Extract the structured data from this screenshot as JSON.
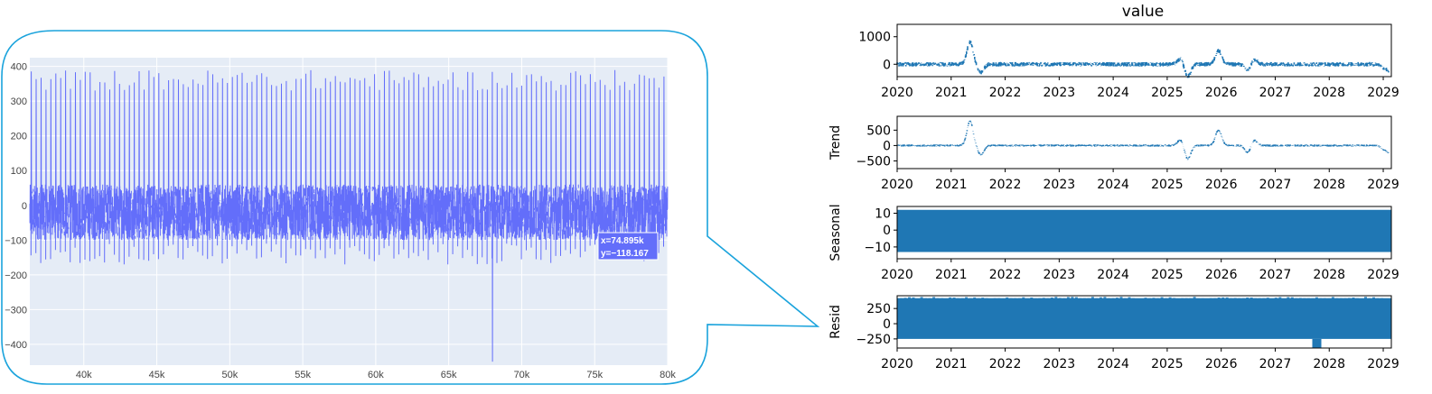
{
  "colors": {
    "plotly_line": "#636efa",
    "plotly_bg": "#e5ecf6",
    "callout_border": "#1aa3dc",
    "mpl_line": "#1f77b4"
  },
  "chart_data": [
    {
      "type": "line",
      "xlim": [
        36300,
        80000
      ],
      "ylim": [
        -460,
        425
      ],
      "x_ticks": [
        40000,
        45000,
        50000,
        55000,
        60000,
        65000,
        70000,
        75000,
        80000
      ],
      "x_tick_labels": [
        "40k",
        "45k",
        "50k",
        "55k",
        "60k",
        "65k",
        "70k",
        "75k",
        "80k"
      ],
      "y_ticks": [
        400,
        300,
        200,
        100,
        0,
        -100,
        -200,
        -300,
        -400
      ],
      "y_tick_labels": [
        "400",
        "300",
        "200",
        "100",
        "0",
        "−100",
        "−200",
        "−300",
        "−400"
      ],
      "grid": true,
      "signal": {
        "baseline_range": [
          -100,
          60
        ],
        "spike_period": 336,
        "spike_peak_range": [
          330,
          390
        ],
        "anomaly": {
          "x": 68000,
          "min": -450,
          "max": 230
        }
      },
      "hover": {
        "x": 74895,
        "y": -118.167,
        "x_label": "x=74.895k",
        "y_label": "y=−118.167"
      }
    },
    {
      "type": "line",
      "title": "value",
      "panels": [
        {
          "ylabel": "",
          "ylim": [
            -450,
            1450
          ],
          "y_ticks": [
            1000,
            0
          ],
          "y_tick_labels": [
            "1000",
            "0"
          ],
          "series": "observed"
        },
        {
          "ylabel": "Trend",
          "ylim": [
            -750,
            950
          ],
          "y_ticks": [
            500,
            0,
            -500
          ],
          "y_tick_labels": [
            "500",
            "0",
            "−500"
          ],
          "series": "trend"
        },
        {
          "ylabel": "Seasonal",
          "ylim": [
            -17,
            14
          ],
          "y_ticks": [
            10,
            0,
            -10
          ],
          "y_tick_labels": [
            "10",
            "0",
            "−10"
          ],
          "series": "seasonal",
          "band": [
            -13,
            12
          ]
        },
        {
          "ylabel": "Resid",
          "ylim": [
            -400,
            460
          ],
          "y_ticks": [
            250,
            0,
            -250
          ],
          "y_tick_labels": [
            "250",
            "0",
            "−250"
          ],
          "series": "resid",
          "band": [
            -250,
            420
          ]
        }
      ],
      "xlim": [
        2020,
        2029.15
      ],
      "x_ticks": [
        2020,
        2021,
        2022,
        2023,
        2024,
        2025,
        2026,
        2027,
        2028,
        2029
      ],
      "x_tick_labels": [
        "2020",
        "2021",
        "2022",
        "2023",
        "2024",
        "2025",
        "2026",
        "2027",
        "2028",
        "2029"
      ],
      "events": [
        {
          "x": 2021.35,
          "amp": 800
        },
        {
          "x": 2021.55,
          "amp": -300
        },
        {
          "x": 2025.25,
          "amp": 200
        },
        {
          "x": 2025.38,
          "amp": -450
        },
        {
          "x": 2025.95,
          "amp": 500
        },
        {
          "x": 2026.5,
          "amp": -250
        },
        {
          "x": 2026.6,
          "amp": 200
        }
      ],
      "resid_dip": {
        "x": 2027.77,
        "min": -400
      }
    }
  ]
}
